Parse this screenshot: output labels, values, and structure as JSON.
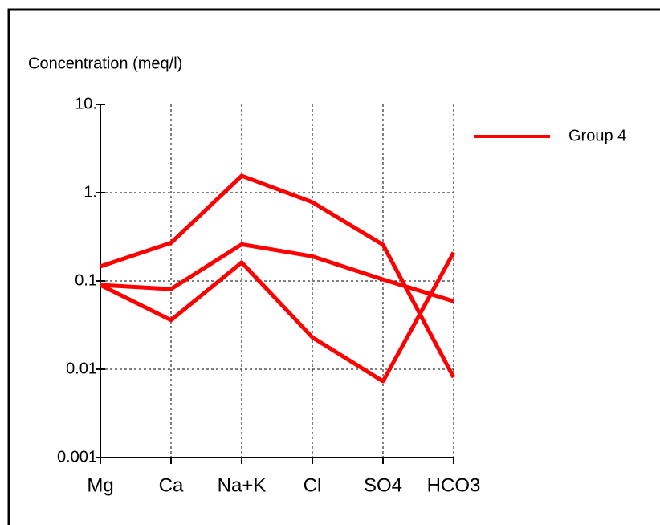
{
  "chart_data": {
    "type": "line",
    "y_label": "Concentration (meq/l)",
    "categories": [
      "Mg",
      "Ca",
      "Na+K",
      "Cl",
      "SO4",
      "HCO3"
    ],
    "series": [
      {
        "name": "Group 4",
        "color": "#ff0000",
        "values": [
          0.146,
          0.27,
          1.55,
          0.78,
          0.257,
          0.0081
        ]
      },
      {
        "color": "#ff0000",
        "values": [
          0.09,
          0.081,
          0.26,
          0.19,
          0.104,
          0.059
        ]
      },
      {
        "color": "#ff0000",
        "values": [
          0.09,
          0.036,
          0.162,
          0.023,
          0.0073,
          0.21
        ]
      }
    ],
    "log_scale": true,
    "ylim": [
      0.001,
      10
    ],
    "yticks": [
      {
        "value": 10,
        "label": "10."
      },
      {
        "value": 1,
        "label": "1."
      },
      0.1,
      0.01,
      0.001
    ],
    "grid": true,
    "legend": "upper right"
  }
}
